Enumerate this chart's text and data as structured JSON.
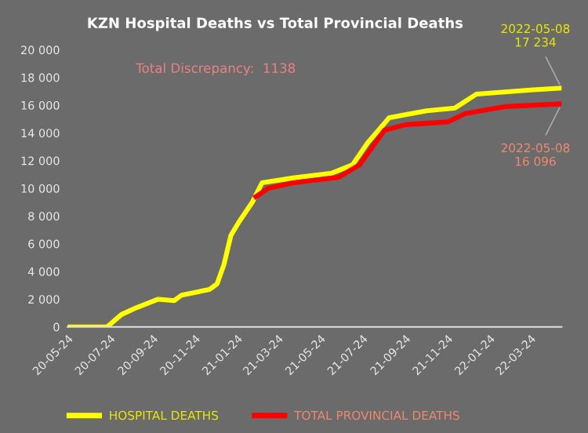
{
  "chart_data": {
    "type": "line",
    "title": "KZN Hospital Deaths vs Total Provincial Deaths",
    "xlim": [
      "2020-05-24",
      "2022-05-08"
    ],
    "xticks": [
      {
        "value": "2020-05-24",
        "label": "20-05-24"
      },
      {
        "value": "2020-07-24",
        "label": "20-07-24"
      },
      {
        "value": "2020-09-24",
        "label": "20-09-24"
      },
      {
        "value": "2020-11-24",
        "label": "20-11-24"
      },
      {
        "value": "2021-01-24",
        "label": "21-01-24"
      },
      {
        "value": "2021-03-24",
        "label": "21-03-24"
      },
      {
        "value": "2021-05-24",
        "label": "21-05-24"
      },
      {
        "value": "2021-07-24",
        "label": "21-07-24"
      },
      {
        "value": "2021-09-24",
        "label": "21-09-24"
      },
      {
        "value": "2021-11-24",
        "label": "21-11-24"
      },
      {
        "value": "2022-01-24",
        "label": "22-01-24"
      },
      {
        "value": "2022-03-24",
        "label": "22-03-24"
      }
    ],
    "ylim": [
      0,
      20000
    ],
    "yticks": [
      0,
      {
        "value": 2000,
        "label": "2 000"
      },
      {
        "value": 4000,
        "label": "4 000"
      },
      {
        "value": 6000,
        "label": "6 000"
      },
      {
        "value": 8000,
        "label": "8 000"
      },
      {
        "value": 10000,
        "label": "10 000"
      },
      {
        "value": 12000,
        "label": "12 000"
      },
      {
        "value": 14000,
        "label": "14 000"
      },
      {
        "value": 16000,
        "label": "16 000"
      },
      {
        "value": 18000,
        "label": "18 000"
      },
      {
        "value": 20000,
        "label": "20 000"
      }
    ],
    "grid": false,
    "legend": "bottom",
    "marker": "none",
    "line_style": "solid",
    "series": [
      {
        "name": "HOSPITAL DEATHS",
        "color": "#ffff00",
        "x": [
          "2020-05-24",
          "2020-07-20",
          "2020-08-10",
          "2020-09-01",
          "2020-10-02",
          "2020-10-25",
          "2020-11-05",
          "2020-12-15",
          "2020-12-26",
          "2021-01-05",
          "2021-01-15",
          "2021-01-27",
          "2021-02-15",
          "2021-03-01",
          "2021-04-15",
          "2021-06-10",
          "2021-07-10",
          "2021-08-01",
          "2021-09-01",
          "2021-10-25",
          "2021-12-05",
          "2022-01-05",
          "2022-03-24",
          "2022-05-08"
        ],
        "values": [
          0,
          0,
          900,
          1400,
          2000,
          1900,
          2300,
          2700,
          3100,
          4500,
          6600,
          7600,
          9000,
          10400,
          10750,
          11100,
          11700,
          13300,
          15100,
          15600,
          15800,
          16800,
          17100,
          17234
        ]
      },
      {
        "name": "TOTAL PROVINCIAL DEATHS",
        "color": "#ff0000",
        "x": [
          "2021-02-20",
          "2021-03-10",
          "2021-04-15",
          "2021-06-20",
          "2021-07-20",
          "2021-08-25",
          "2021-09-25",
          "2021-11-25",
          "2021-12-20",
          "2022-02-15",
          "2022-05-08"
        ],
        "values": [
          9400,
          10000,
          10400,
          10800,
          11700,
          14200,
          14600,
          14800,
          15400,
          15900,
          16096
        ]
      }
    ],
    "annotations": [
      {
        "text": "2022-05-08\n17 234",
        "x": "2022-05-08",
        "y": 17234
      },
      {
        "text": "2022-05-08\n16 096",
        "x": "2022-05-08",
        "y": 16096
      },
      "Total Discrepancy:  1138"
    ]
  }
}
